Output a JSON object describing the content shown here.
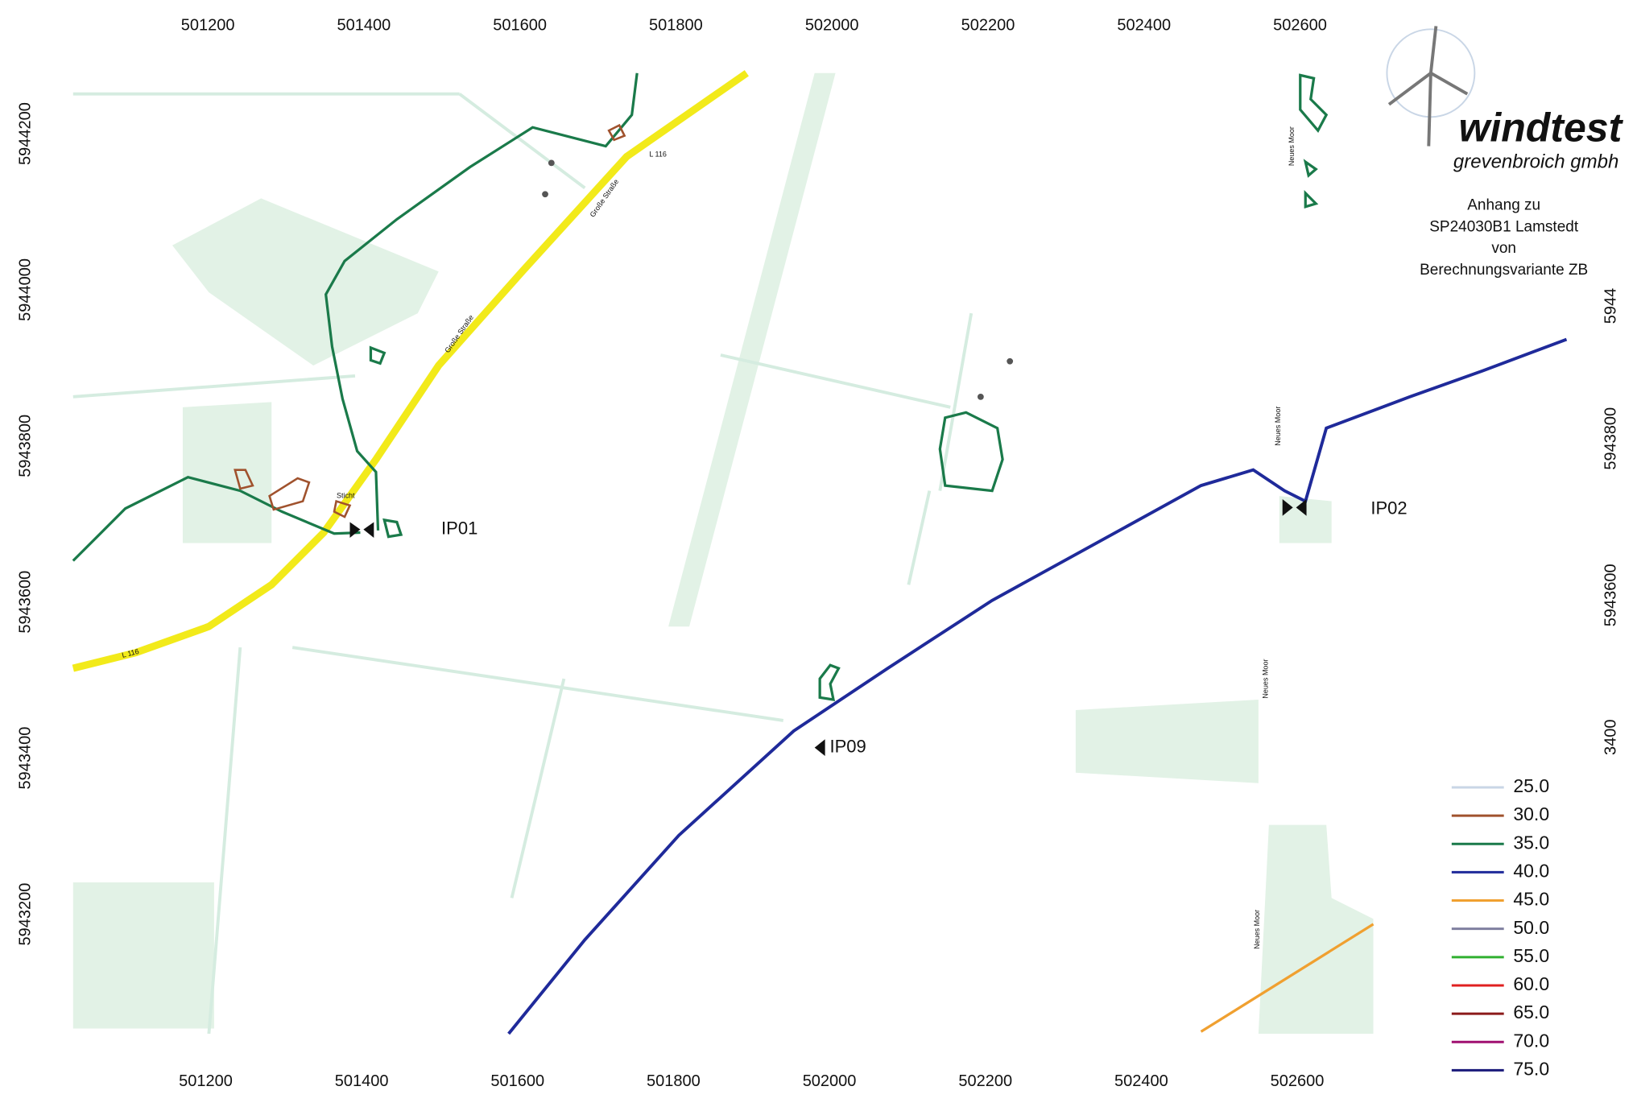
{
  "axes": {
    "top": [
      "501200",
      "501400",
      "501600",
      "501800",
      "502000",
      "502200",
      "502400",
      "502600"
    ],
    "bottom": [
      "501200",
      "501400",
      "501600",
      "501800",
      "502000",
      "502200",
      "502400",
      "502600"
    ],
    "left": [
      "5944200",
      "5944000",
      "5943800",
      "5943600",
      "5943400",
      "5943200"
    ],
    "right": [
      "5944",
      "5943800",
      "5943600",
      "3400"
    ]
  },
  "logo": {
    "name": "windtest",
    "subtitle": "grevenbroich gmbh"
  },
  "annotation": [
    "Anhang zu",
    "SP24030B1 Lamstedt",
    "von",
    "Berechnungsvariante ZB"
  ],
  "points": [
    "IP01",
    "IP02",
    "IP09"
  ],
  "map_labels": [
    "Sticht",
    "L 116",
    "L 116",
    "Große Straße",
    "Große Straße",
    "Neues Moor",
    "Neues Moor",
    "Neues Moor",
    "Neues Moor"
  ],
  "legend": [
    {
      "label": "25.0",
      "color": "#c9d6e6"
    },
    {
      "label": "30.0",
      "color": "#a0522d"
    },
    {
      "label": "35.0",
      "color": "#1a7a4a"
    },
    {
      "label": "40.0",
      "color": "#1f2a9a"
    },
    {
      "label": "45.0",
      "color": "#f0a030"
    },
    {
      "label": "50.0",
      "color": "#8080a0"
    },
    {
      "label": "55.0",
      "color": "#30b030"
    },
    {
      "label": "60.0",
      "color": "#e02020"
    },
    {
      "label": "65.0",
      "color": "#8b1a1a"
    },
    {
      "label": "70.0",
      "color": "#a01070"
    },
    {
      "label": "75.0",
      "color": "#1a1a7a"
    }
  ]
}
